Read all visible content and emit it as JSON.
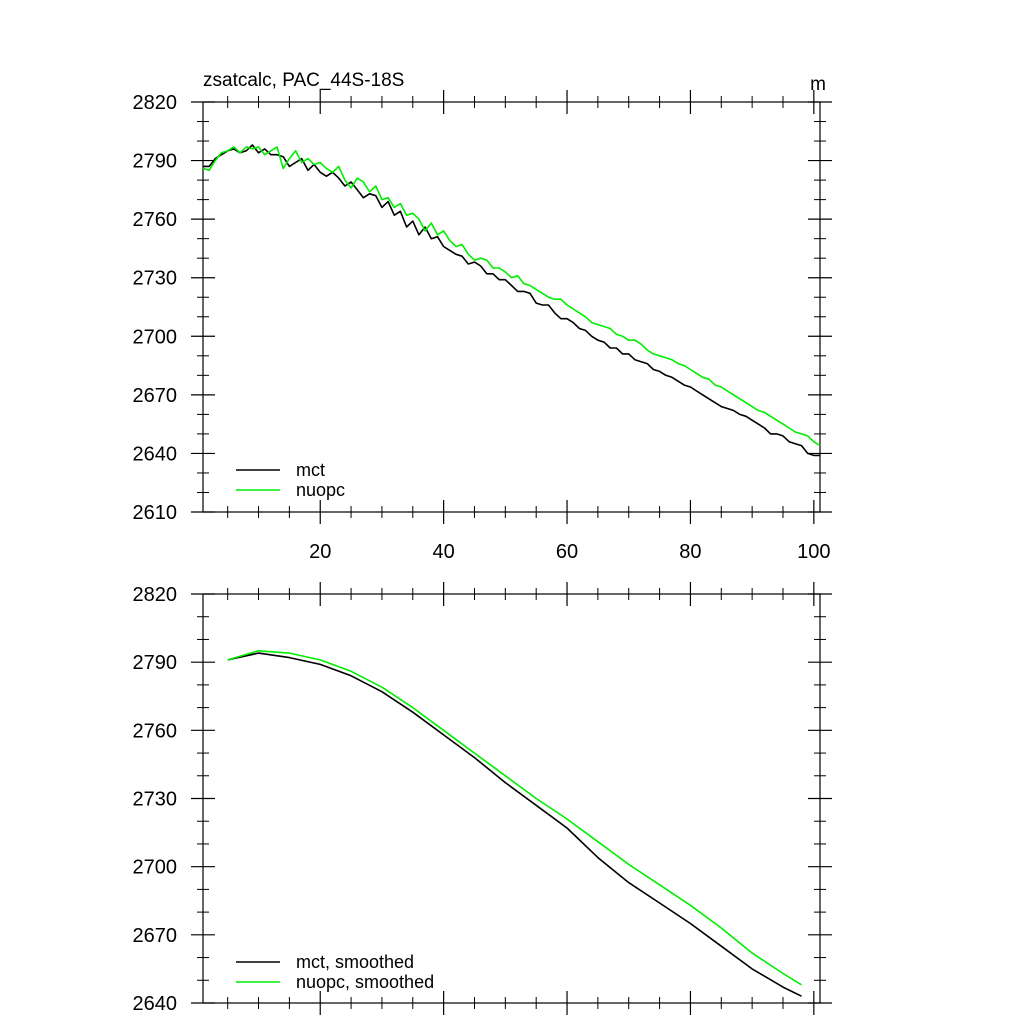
{
  "chart_data": [
    {
      "type": "line",
      "title": "zsatcalc, PAC_44S-18S",
      "units": "m",
      "xlim": [
        1,
        101
      ],
      "ylim": [
        2610,
        2820
      ],
      "xticks": [
        20,
        40,
        60,
        80,
        100
      ],
      "xtick_labels": [
        "20",
        "40",
        "60",
        "80",
        "100"
      ],
      "yticks": [
        2610,
        2640,
        2670,
        2700,
        2730,
        2760,
        2790,
        2820
      ],
      "ytick_labels": [
        "2610",
        "2640",
        "2670",
        "2700",
        "2730",
        "2760",
        "2790",
        "2820"
      ],
      "legend_position": "bottom-left",
      "series": [
        {
          "name": "mct",
          "color": "#000000",
          "x": [
            1,
            2,
            3,
            4,
            5,
            6,
            7,
            8,
            9,
            10,
            11,
            12,
            13,
            14,
            15,
            16,
            17,
            18,
            19,
            20,
            21,
            22,
            23,
            24,
            25,
            26,
            27,
            28,
            29,
            30,
            31,
            32,
            33,
            34,
            35,
            36,
            37,
            38,
            39,
            40,
            41,
            42,
            43,
            44,
            45,
            46,
            47,
            48,
            49,
            50,
            51,
            52,
            53,
            54,
            55,
            56,
            57,
            58,
            59,
            60,
            61,
            62,
            63,
            64,
            65,
            66,
            67,
            68,
            69,
            70,
            71,
            72,
            73,
            74,
            75,
            76,
            77,
            78,
            79,
            80,
            81,
            82,
            83,
            84,
            85,
            86,
            87,
            88,
            89,
            90,
            91,
            92,
            93,
            94,
            95,
            96,
            97,
            98,
            99,
            100,
            101
          ],
          "values": [
            2787,
            2787,
            2791,
            2793,
            2795,
            2796,
            2794,
            2795,
            2798,
            2794,
            2796,
            2793,
            2793,
            2792,
            2787,
            2789,
            2791,
            2785,
            2788,
            2784,
            2782,
            2784,
            2781,
            2777,
            2779,
            2775,
            2771,
            2773,
            2772,
            2766,
            2769,
            2762,
            2764,
            2756,
            2759,
            2752,
            2756,
            2750,
            2751,
            2746,
            2744,
            2742,
            2741,
            2737,
            2738,
            2736,
            2732,
            2732,
            2729,
            2729,
            2726,
            2723,
            2723,
            2722,
            2717,
            2716,
            2716,
            2712,
            2709,
            2709,
            2707,
            2704,
            2703,
            2700,
            2698,
            2697,
            2694,
            2694,
            2691,
            2691,
            2688,
            2687,
            2686,
            2683,
            2682,
            2680,
            2679,
            2677,
            2675,
            2674,
            2672,
            2670,
            2668,
            2666,
            2664,
            2663,
            2662,
            2660,
            2659,
            2657,
            2655,
            2653,
            2650,
            2650,
            2649,
            2646,
            2645,
            2644,
            2640,
            2639,
            2639
          ]
        },
        {
          "name": "nuopc",
          "color": "#00ee00",
          "x": [
            1,
            2,
            3,
            4,
            5,
            6,
            7,
            8,
            9,
            10,
            11,
            12,
            13,
            14,
            15,
            16,
            17,
            18,
            19,
            20,
            21,
            22,
            23,
            24,
            25,
            26,
            27,
            28,
            29,
            30,
            31,
            32,
            33,
            34,
            35,
            36,
            37,
            38,
            39,
            40,
            41,
            42,
            43,
            44,
            45,
            46,
            47,
            48,
            49,
            50,
            51,
            52,
            53,
            54,
            55,
            56,
            57,
            58,
            59,
            60,
            61,
            62,
            63,
            64,
            65,
            66,
            67,
            68,
            69,
            70,
            71,
            72,
            73,
            74,
            75,
            76,
            77,
            78,
            79,
            80,
            81,
            82,
            83,
            84,
            85,
            86,
            87,
            88,
            89,
            90,
            91,
            92,
            93,
            94,
            95,
            96,
            97,
            98,
            99,
            100,
            101
          ],
          "values": [
            2786,
            2785,
            2790,
            2794,
            2795,
            2797,
            2794,
            2797,
            2796,
            2797,
            2793,
            2795,
            2797,
            2786,
            2791,
            2795,
            2789,
            2791,
            2788,
            2789,
            2786,
            2784,
            2787,
            2780,
            2776,
            2781,
            2779,
            2774,
            2777,
            2770,
            2771,
            2766,
            2768,
            2762,
            2763,
            2760,
            2754,
            2758,
            2752,
            2754,
            2749,
            2746,
            2747,
            2742,
            2739,
            2740,
            2739,
            2735,
            2735,
            2733,
            2730,
            2731,
            2727,
            2726,
            2724,
            2722,
            2720,
            2719,
            2719,
            2716,
            2714,
            2712,
            2710,
            2707,
            2706,
            2705,
            2704,
            2701,
            2700,
            2698,
            2698,
            2696,
            2693,
            2691,
            2690,
            2689,
            2688,
            2686,
            2685,
            2683,
            2681,
            2679,
            2678,
            2675,
            2674,
            2672,
            2670,
            2668,
            2666,
            2664,
            2662,
            2661,
            2659,
            2657,
            2655,
            2653,
            2651,
            2650,
            2649,
            2646,
            2644
          ]
        }
      ]
    },
    {
      "type": "line",
      "xlim": [
        1,
        101
      ],
      "ylim": [
        2640,
        2820
      ],
      "xticks": [
        20,
        40,
        60,
        80,
        100
      ],
      "yticks": [
        2640,
        2670,
        2700,
        2730,
        2760,
        2790,
        2820
      ],
      "ytick_labels": [
        "2640",
        "2670",
        "2700",
        "2730",
        "2760",
        "2790",
        "2820"
      ],
      "legend_position": "bottom-left",
      "series": [
        {
          "name": "mct, smoothed",
          "color": "#000000",
          "x": [
            5,
            10,
            15,
            20,
            25,
            30,
            35,
            40,
            45,
            50,
            55,
            60,
            65,
            70,
            75,
            80,
            85,
            90,
            95,
            98
          ],
          "values": [
            2791,
            2794,
            2792,
            2789,
            2784,
            2777,
            2768,
            2758,
            2748,
            2737,
            2727,
            2717,
            2704,
            2693,
            2684,
            2675,
            2665,
            2655,
            2647,
            2643
          ]
        },
        {
          "name": "nuopc, smoothed",
          "color": "#00ee00",
          "x": [
            5,
            10,
            15,
            20,
            25,
            30,
            35,
            40,
            45,
            50,
            55,
            60,
            65,
            70,
            75,
            80,
            85,
            90,
            95,
            98
          ],
          "values": [
            2791,
            2795,
            2794,
            2791,
            2786,
            2779,
            2770,
            2760,
            2750,
            2740,
            2730,
            2721,
            2711,
            2701,
            2692,
            2683,
            2673,
            2662,
            2653,
            2648
          ]
        }
      ]
    }
  ]
}
